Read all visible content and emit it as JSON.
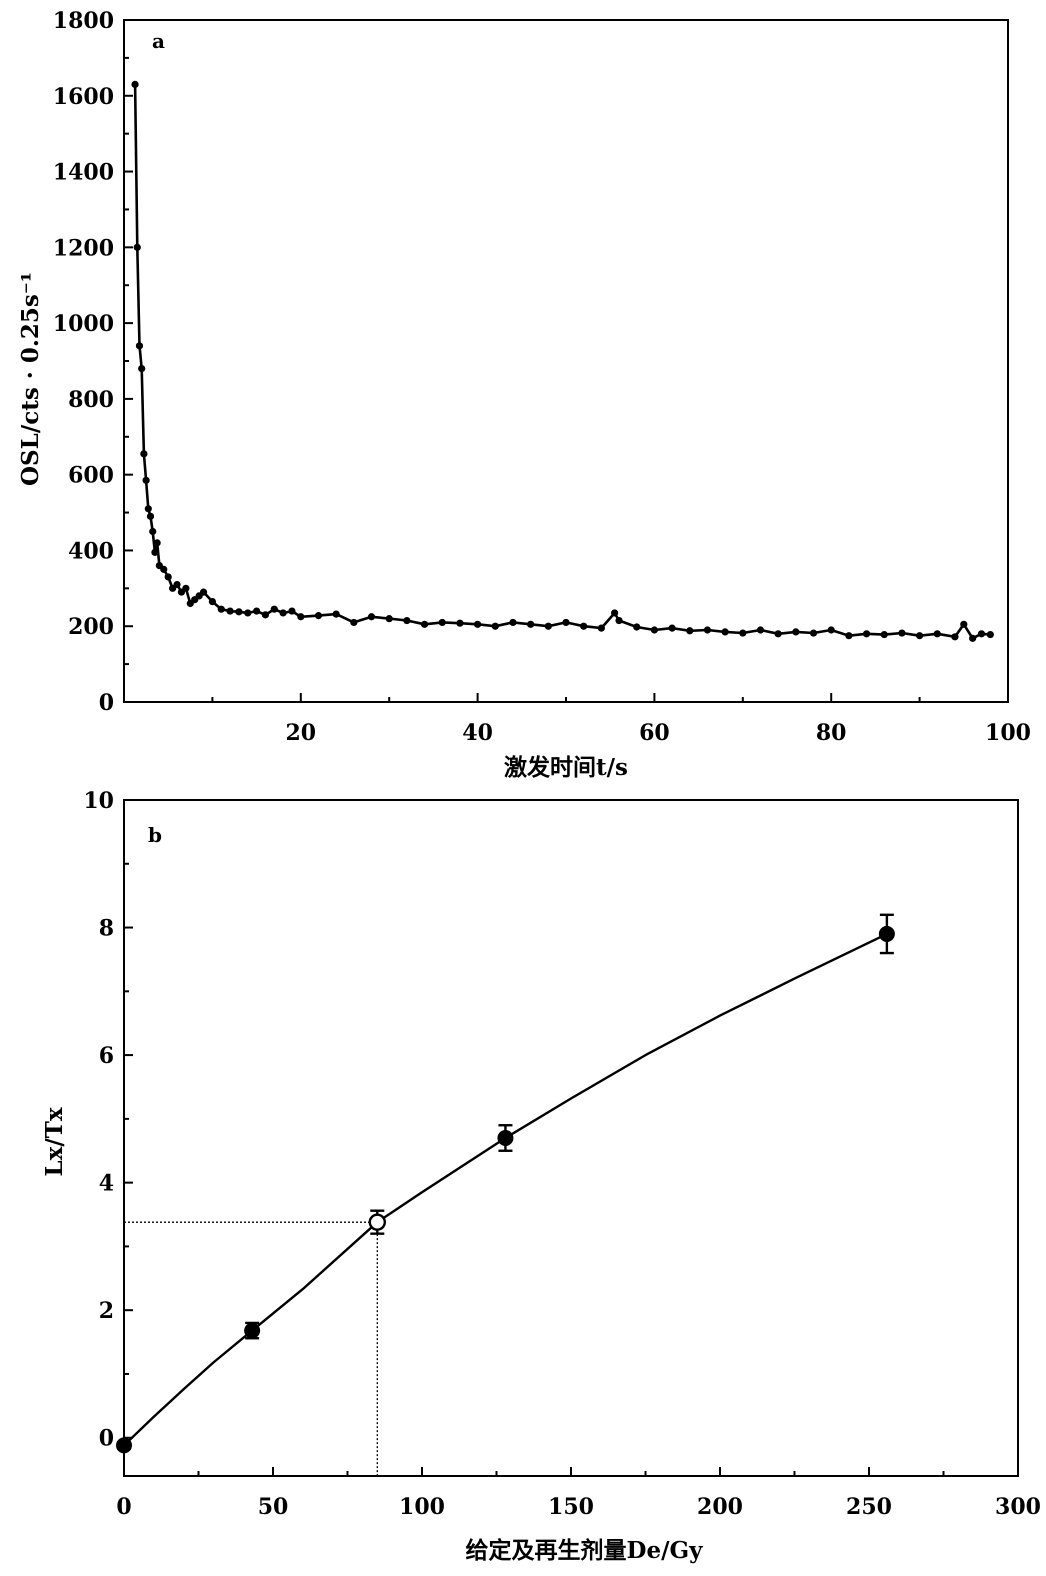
{
  "chart_data": [
    {
      "type": "line",
      "panel_label": "a",
      "xlabel": "激发时间t/s",
      "ylabel": "OSL/cts · 0.25s⁻¹",
      "xlim": [
        0,
        100
      ],
      "ylim": [
        0,
        1800
      ],
      "xticks": [
        20,
        40,
        60,
        80,
        100
      ],
      "yticks": [
        0,
        200,
        400,
        600,
        800,
        1000,
        1200,
        1400,
        1600,
        1800
      ],
      "grid": false,
      "series": [
        {
          "x": [
            1.25,
            1.5,
            1.75,
            2.0,
            2.25,
            2.5,
            2.75,
            3.0,
            3.25,
            3.5,
            3.75,
            4.0,
            4.5,
            5.0,
            5.5,
            6.0,
            6.5,
            7.0,
            7.5,
            8.0,
            8.5,
            9.0,
            10,
            11,
            12,
            13,
            14,
            15,
            16,
            17,
            18,
            19,
            20,
            22,
            24,
            26,
            28,
            30,
            32,
            34,
            36,
            38,
            40,
            42,
            44,
            46,
            48,
            50,
            52,
            54,
            55.5,
            56,
            58,
            60,
            62,
            64,
            66,
            68,
            70,
            72,
            74,
            76,
            78,
            80,
            82,
            84,
            86,
            88,
            90,
            92,
            94,
            95,
            96,
            97,
            98
          ],
          "values": [
            1630,
            1200,
            940,
            880,
            655,
            585,
            510,
            490,
            450,
            395,
            420,
            360,
            350,
            330,
            300,
            310,
            290,
            300,
            260,
            270,
            280,
            290,
            265,
            245,
            240,
            238,
            235,
            240,
            230,
            245,
            235,
            240,
            225,
            228,
            232,
            210,
            225,
            220,
            215,
            205,
            210,
            208,
            205,
            200,
            210,
            205,
            200,
            210,
            200,
            195,
            235,
            215,
            198,
            190,
            195,
            188,
            190,
            185,
            182,
            190,
            180,
            185,
            182,
            190,
            175,
            180,
            178,
            182,
            175,
            180,
            172,
            205,
            168,
            180,
            178
          ]
        }
      ]
    },
    {
      "type": "scatter",
      "panel_label": "b",
      "xlabel": "给定及再生剂量De/Gy",
      "ylabel": "Lx/Tx",
      "xlim": [
        0,
        300
      ],
      "ylim": [
        -0.6,
        10
      ],
      "xticks": [
        0,
        50,
        100,
        150,
        200,
        250,
        300
      ],
      "yticks": [
        0,
        2,
        4,
        6,
        8,
        10
      ],
      "grid": false,
      "series": [
        {
          "marker": "filled",
          "x": [
            0,
            43,
            128,
            256
          ],
          "y": [
            -0.12,
            1.68,
            4.7,
            7.9
          ],
          "error": [
            0.05,
            0.12,
            0.2,
            0.3
          ]
        },
        {
          "marker": "open",
          "x": [
            85
          ],
          "y": [
            3.38
          ],
          "error": [
            0.18
          ]
        }
      ],
      "fit_curve": {
        "x": [
          0,
          10,
          20,
          30,
          43,
          60,
          85,
          100,
          128,
          150,
          175,
          200,
          225,
          256
        ],
        "y": [
          -0.12,
          0.33,
          0.76,
          1.18,
          1.68,
          2.33,
          3.38,
          3.85,
          4.7,
          5.32,
          6.0,
          6.62,
          7.2,
          7.9
        ]
      },
      "reference_lines": {
        "x": 85,
        "y": 3.38
      }
    }
  ]
}
